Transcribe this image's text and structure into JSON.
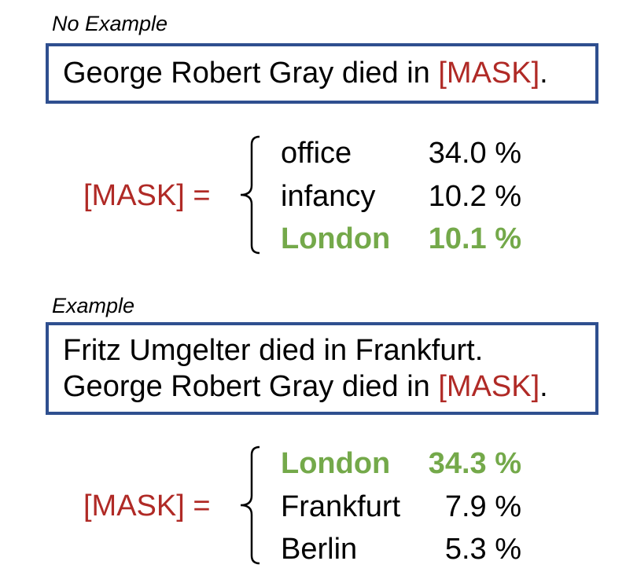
{
  "no_example": {
    "title": "No Example",
    "sentence_prefix": "George Robert Gray died in ",
    "mask": "[MASK]",
    "sentence_suffix": ".",
    "mask_label": "[MASK] =",
    "predictions": [
      {
        "word": "office",
        "percent": "34.0 %",
        "correct": false
      },
      {
        "word": "infancy",
        "percent": "10.2 %",
        "correct": false
      },
      {
        "word": "London",
        "percent": "10.1 %",
        "correct": true
      }
    ]
  },
  "example": {
    "title": "Example",
    "line1": "Fritz Umgelter died in Frankfurt.",
    "line2_prefix": "George Robert Gray died in ",
    "mask": "[MASK]",
    "line2_suffix": ".",
    "mask_label": "[MASK] =",
    "predictions": [
      {
        "word": "London",
        "percent": "34.3 %",
        "correct": true
      },
      {
        "word": "Frankfurt",
        "percent": "7.9 %",
        "correct": false
      },
      {
        "word": "Berlin",
        "percent": "5.3 %",
        "correct": false
      }
    ]
  },
  "colors": {
    "mask": "#b02a26",
    "correct": "#74a94a",
    "box_border": "#2f4f8f"
  }
}
